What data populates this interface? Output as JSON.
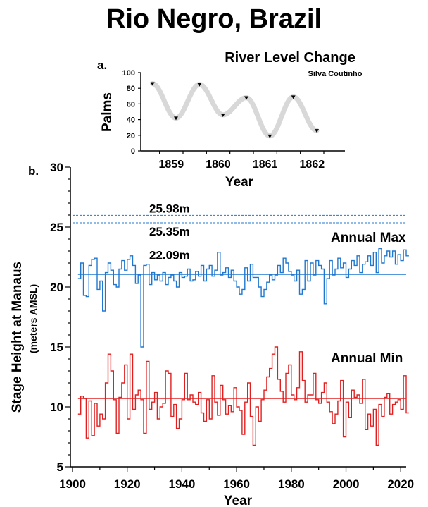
{
  "title": "Rio Negro, Brazil",
  "colors": {
    "max": "#1f77d0",
    "min": "#e02020",
    "level": "#d8d8d8",
    "axis": "#000000"
  },
  "chart_data": [
    {
      "panel_label": "a.",
      "type": "line",
      "title": "River Level Change",
      "subtitle": "Silva Coutinho",
      "xlabel": "Year",
      "ylabel": "Palms",
      "xticks": [
        "1859",
        "1860",
        "1861",
        "1862"
      ],
      "yticks": [
        0,
        20,
        40,
        60,
        80,
        100
      ],
      "ylim": [
        0,
        100
      ],
      "xlim": [
        1858.6,
        1862.95
      ],
      "series": [
        {
          "x": [
            1858.85,
            1859.35,
            1859.85,
            1860.35,
            1860.85,
            1861.35,
            1861.85,
            1862.35
          ],
          "values": [
            86,
            42,
            85,
            46,
            68,
            19,
            69,
            26
          ]
        }
      ]
    },
    {
      "panel_label": "b.",
      "type": "line",
      "xlabel": "Year",
      "ylabel": "Stage Height at Manaus",
      "ylabel_sub": "(meters AMSL)",
      "xlim": [
        1900,
        2022
      ],
      "ylim": [
        5,
        30
      ],
      "xticks": [
        1900,
        1920,
        1940,
        1960,
        1980,
        2000,
        2020
      ],
      "yticks": [
        5,
        10,
        15,
        20,
        25,
        30
      ],
      "reference_lines": [
        {
          "label": "25.98m",
          "value": 25.98
        },
        {
          "label": "25.35m",
          "value": 25.35
        },
        {
          "label": "22.09m",
          "value": 22.09
        }
      ],
      "series": [
        {
          "name": "Annual Max",
          "mean": 21.05,
          "start_year": 1902,
          "values": [
            20.7,
            22.0,
            19.3,
            19.2,
            21.8,
            22.3,
            22.4,
            19.8,
            20.5,
            18.0,
            21.2,
            22.0,
            21.4,
            20.2,
            20.0,
            21.5,
            22.2,
            21.4,
            22.3,
            22.6,
            21.8,
            20.3,
            21.0,
            15.0,
            21.8,
            21.9,
            20.2,
            21.2,
            20.6,
            21.0,
            20.5,
            21.2,
            20.2,
            20.8,
            21.0,
            20.5,
            20.0,
            21.2,
            20.8,
            20.9,
            21.5,
            20.5,
            20.6,
            21.3,
            20.9,
            21.8,
            20.5,
            21.5,
            21.8,
            20.9,
            21.4,
            22.9,
            21.0,
            21.2,
            21.6,
            20.8,
            21.4,
            20.5,
            20.0,
            19.4,
            19.8,
            21.6,
            20.5,
            21.9,
            20.8,
            20.8,
            20.0,
            19.2,
            19.8,
            20.4,
            21.0,
            20.6,
            21.0,
            21.8,
            21.2,
            22.4,
            22.0,
            21.3,
            21.0,
            20.5,
            21.4,
            19.4,
            19.8,
            22.2,
            20.5,
            22.0,
            21.0,
            22.2,
            21.8,
            21.5,
            18.6,
            20.7,
            22.2,
            21.0,
            21.5,
            22.4,
            21.6,
            22.0,
            20.8,
            21.5,
            22.2,
            21.8,
            22.6,
            21.2,
            21.9,
            22.1,
            22.6,
            21.8,
            22.9,
            21.2,
            23.2,
            22.0,
            22.6,
            23.0,
            22.5,
            23.0,
            21.9,
            22.7,
            22.2,
            23.1,
            22.6
          ]
        },
        {
          "name": "Annual Min",
          "mean": 10.7,
          "start_year": 1902,
          "values": [
            9.4,
            10.9,
            10.7,
            7.4,
            10.5,
            7.6,
            10.3,
            8.4,
            9.4,
            9.0,
            12.0,
            14.4,
            13.0,
            10.6,
            7.8,
            10.8,
            12.0,
            13.5,
            9.0,
            14.4,
            9.8,
            11.0,
            11.4,
            10.6,
            7.8,
            13.8,
            9.8,
            10.4,
            11.2,
            9.0,
            10.0,
            10.3,
            13.0,
            12.8,
            9.2,
            10.2,
            8.2,
            9.0,
            10.6,
            12.8,
            10.6,
            11.0,
            10.4,
            10.2,
            11.2,
            9.5,
            8.8,
            10.6,
            9.0,
            12.6,
            10.4,
            9.3,
            11.8,
            10.6,
            9.4,
            10.1,
            9.6,
            11.6,
            10.0,
            9.7,
            7.7,
            10.4,
            12.0,
            9.2,
            6.8,
            10.0,
            8.8,
            10.6,
            11.4,
            12.5,
            13.2,
            14.4,
            15.0,
            12.3,
            11.3,
            10.4,
            12.8,
            13.5,
            11.0,
            10.6,
            11.6,
            14.6,
            12.2,
            10.4,
            11.0,
            11.0,
            12.8,
            10.6,
            10.3,
            11.2,
            12.0,
            10.4,
            9.6,
            8.6,
            9.4,
            10.5,
            12.2,
            7.5,
            10.4,
            9.1,
            11.4,
            10.8,
            11.0,
            10.3,
            12.3,
            8.1,
            9.4,
            8.4,
            9.8,
            6.8,
            10.2,
            9.2,
            10.8,
            11.1,
            9.4,
            10.2,
            10.4,
            10.6,
            9.8,
            12.6,
            9.5
          ]
        }
      ]
    }
  ]
}
